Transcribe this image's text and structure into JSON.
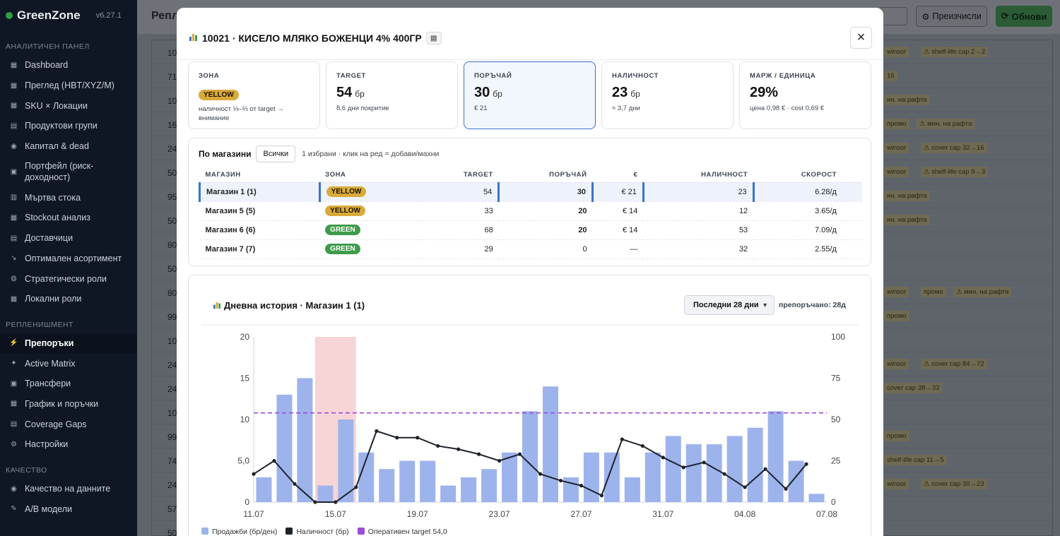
{
  "sidebar": {
    "brand": "GreenZone",
    "version": "v6.27.1",
    "sections": [
      {
        "title": "АНАЛИТИЧЕН ПАНЕЛ",
        "items": [
          "Dashboard",
          "Преглед (HBT/XYZ/M)",
          "SKU × Локации",
          "Продуктови групи",
          "Капитал & dead",
          "Портфейл (риск-доходност)",
          "Мъртва стока",
          "Stockout анализ",
          "Доставчици",
          "Оптимален асортимент",
          "Стратегически роли",
          "Локални роли"
        ]
      },
      {
        "title": "РЕПЛЕНИШМЕНТ",
        "items": [
          "Препоръки",
          "Active Matrix",
          "Трансфери",
          "График и поръчки",
          "Coverage Gaps",
          "Настройки"
        ]
      },
      {
        "title": "КАЧЕСТВО",
        "items": [
          "Качество на данните",
          "A/B модели"
        ]
      }
    ],
    "active_item": "Препоръки"
  },
  "background": {
    "title": "Репл",
    "recalc_label": "Преизчисли",
    "refresh_label": "Обнови",
    "row_numbers": [
      "10",
      "71",
      "10",
      "16",
      "24",
      "50",
      "95",
      "50",
      "80",
      "50",
      "80",
      "99",
      "10",
      "24",
      "24",
      "10",
      "99",
      "74",
      "24",
      "57",
      "50"
    ],
    "tags": [
      {
        "row": 0,
        "texts": [
          "winsor",
          "⚠ shelf-life cap 2→2"
        ]
      },
      {
        "row": 1,
        "texts": [
          "16"
        ]
      },
      {
        "row": 2,
        "texts": [
          "ин. на рафта"
        ]
      },
      {
        "row": 3,
        "texts": [
          "промо",
          "⚠ мин. на рафта"
        ]
      },
      {
        "row": 4,
        "texts": [
          "winsor",
          "⚠ cover cap 32→16"
        ]
      },
      {
        "row": 5,
        "texts": [
          "winsor",
          "⚠ shelf-life cap 9→3"
        ]
      },
      {
        "row": 6,
        "texts": [
          "ин. на рафта"
        ]
      },
      {
        "row": 7,
        "texts": [
          "ин. на рафта"
        ]
      },
      {
        "row": 10,
        "texts": [
          "winsor",
          "промо",
          "⚠ мин. на рафта"
        ]
      },
      {
        "row": 11,
        "texts": [
          "промо"
        ]
      },
      {
        "row": 13,
        "texts": [
          "winsor",
          "⚠ cover cap 84→72"
        ]
      },
      {
        "row": 14,
        "texts": [
          "cover cap 38→33"
        ]
      },
      {
        "row": 16,
        "texts": [
          "промо"
        ]
      },
      {
        "row": 17,
        "texts": [
          "shelf-life cap 11→5"
        ]
      },
      {
        "row": 18,
        "texts": [
          "winsor",
          "⚠ cover cap 30→23"
        ]
      }
    ]
  },
  "modal": {
    "title": "10021 · КИСЕЛО МЛЯКО БОЖЕНЦИ 4% 400ГР",
    "kpis": [
      {
        "label": "ЗОНА",
        "zone": "YELLOW",
        "sub": "наличност ⅓–⅔ от target → внимание"
      },
      {
        "label": "TARGET",
        "value": "54",
        "unit": "бр",
        "sub": "8,6 дни покритие"
      },
      {
        "label": "ПОРЪЧАЙ",
        "value": "30",
        "unit": "бр",
        "sub": "€ 21"
      },
      {
        "label": "НАЛИЧНОСТ",
        "value": "23",
        "unit": "бр",
        "sub": "≈ 3,7 дни"
      },
      {
        "label": "МАРЖ / ЕДИНИЦА",
        "value": "29%",
        "unit": "",
        "sub": "цена 0,98 € · cost 0,69 €"
      }
    ],
    "stores": {
      "title": "По магазини",
      "all_label": "Всички",
      "hint": "1 избрани · клик на ред = добави/махни",
      "columns": [
        "МАГАЗИН",
        "ЗОНА",
        "TARGET",
        "ПОРЪЧАЙ",
        "€",
        "НАЛИЧНОСТ",
        "СКОРОСТ"
      ],
      "rows": [
        {
          "store": "Магазин 1 (1)",
          "zone": "YELLOW",
          "target": "54",
          "order": "30",
          "eur": "€ 21",
          "stock": "23",
          "speed": "6.28/д",
          "selected": true
        },
        {
          "store": "Магазин 5 (5)",
          "zone": "YELLOW",
          "target": "33",
          "order": "20",
          "eur": "€ 14",
          "stock": "12",
          "speed": "3.65/д",
          "selected": false
        },
        {
          "store": "Магазин 6 (6)",
          "zone": "GREEN",
          "target": "68",
          "order": "20",
          "eur": "€ 14",
          "stock": "53",
          "speed": "7.09/д",
          "selected": false
        },
        {
          "store": "Магазин 7 (7)",
          "zone": "GREEN",
          "target": "29",
          "order": "0",
          "eur": "—",
          "stock": "32",
          "speed": "2.55/д",
          "selected": false
        }
      ]
    },
    "history": {
      "title": "Дневна история · Магазин 1 (1)",
      "range_label": "Последни 28 дни",
      "recommended": "препоръчано: 28д"
    }
  },
  "colors": {
    "accent": "#3b73c9",
    "yellow": "#d9a93a",
    "green": "#3f9b4a",
    "bar": "#9db3ec",
    "stockout": "#f7d4d6",
    "target": "#9b4bd8"
  },
  "chart_data": {
    "type": "bar",
    "x": [
      "11.07",
      "12.07",
      "13.07",
      "14.07",
      "15.07",
      "16.07",
      "17.07",
      "18.07",
      "19.07",
      "20.07",
      "21.07",
      "22.07",
      "23.07",
      "24.07",
      "25.07",
      "26.07",
      "27.07",
      "28.07",
      "29.07",
      "30.07",
      "31.07",
      "01.08",
      "02.08",
      "03.08",
      "04.08",
      "05.08",
      "06.08",
      "07.08"
    ],
    "x_tick_labels": [
      "11.07",
      "15.07",
      "19.07",
      "23.07",
      "27.07",
      "31.07",
      "04.08",
      "07.08"
    ],
    "series": [
      {
        "name": "Продажби (бр/ден)",
        "type": "bar",
        "axis": "left",
        "values": [
          3,
          13,
          15,
          2,
          10,
          6,
          4,
          5,
          5,
          2,
          3,
          4,
          6,
          11,
          14,
          3,
          6,
          6,
          3,
          6,
          8,
          7,
          7,
          8,
          9,
          11,
          5,
          1
        ]
      },
      {
        "name": "Наличност (бр)",
        "type": "line",
        "axis": "right",
        "values": [
          17,
          25,
          11,
          0,
          0,
          9,
          43,
          39,
          39,
          34,
          32,
          29,
          25,
          29,
          17,
          13,
          10,
          4,
          38,
          34,
          27,
          21,
          24,
          17,
          9,
          20,
          8,
          23
        ]
      },
      {
        "name": "Оперативен target 54,0",
        "type": "hline",
        "axis": "right",
        "value": 54
      }
    ],
    "stockout_days": [
      "14.07",
      "15.07"
    ],
    "ylim_left": [
      0,
      20
    ],
    "ylim_right": [
      0,
      100
    ],
    "yticks_left": [
      "0",
      "5,0",
      "10",
      "15",
      "20"
    ],
    "yticks_right": [
      "0",
      "25",
      "50",
      "75",
      "100"
    ],
    "legend_position": "bottom-left"
  }
}
